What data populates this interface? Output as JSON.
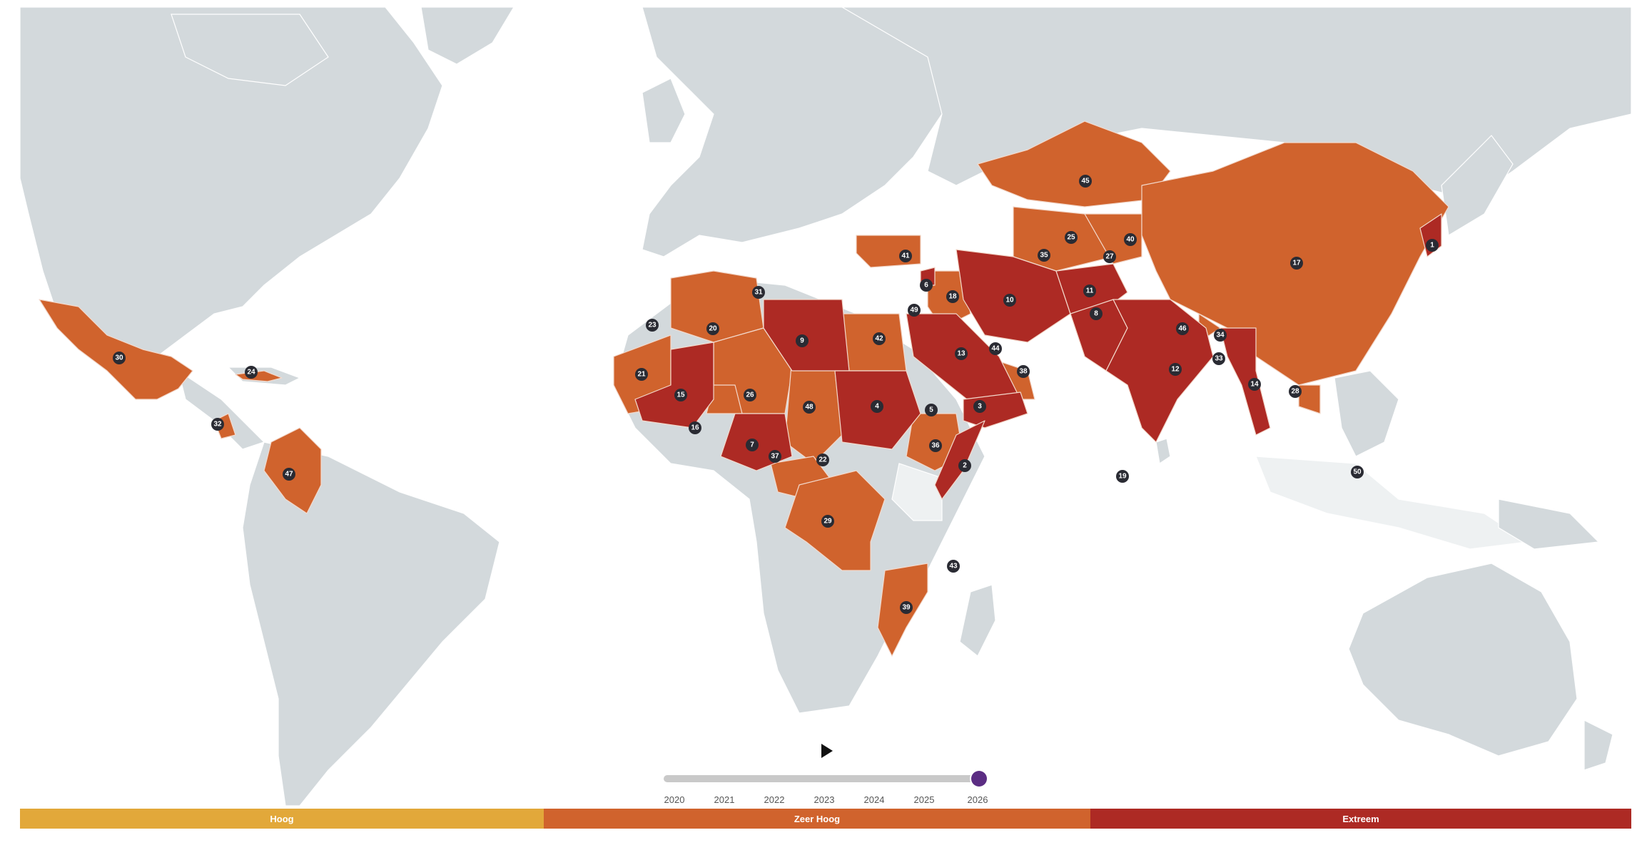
{
  "colors": {
    "land": "#d3d9dc",
    "hoog": "#e2a83a",
    "zeer_hoog": "#d0632d",
    "extreem": "#ad2a24",
    "marker": "#2a2b33",
    "handle": "#5b2d83"
  },
  "timeline": {
    "years": [
      "2020",
      "2021",
      "2022",
      "2023",
      "2024",
      "2025",
      "2026"
    ],
    "selected_year": "2026",
    "play_icon": "play-icon"
  },
  "legend": [
    {
      "label": "Hoog",
      "color": "#e2a83a"
    },
    {
      "label": "Zeer Hoog",
      "color": "#d0632d"
    },
    {
      "label": "Extreem",
      "color": "#ad2a24"
    }
  ],
  "markers": [
    "1",
    "2",
    "3",
    "4",
    "5",
    "6",
    "7",
    "8",
    "9",
    "10",
    "11",
    "12",
    "13",
    "14",
    "15",
    "16",
    "17",
    "18",
    "19",
    "20",
    "21",
    "22",
    "23",
    "24",
    "25",
    "26",
    "27",
    "28",
    "29",
    "30",
    "31",
    "32",
    "33",
    "34",
    "35",
    "36",
    "37",
    "38",
    "39",
    "40",
    "41",
    "42",
    "43",
    "44",
    "45",
    "46",
    "47",
    "48",
    "49",
    "50"
  ]
}
